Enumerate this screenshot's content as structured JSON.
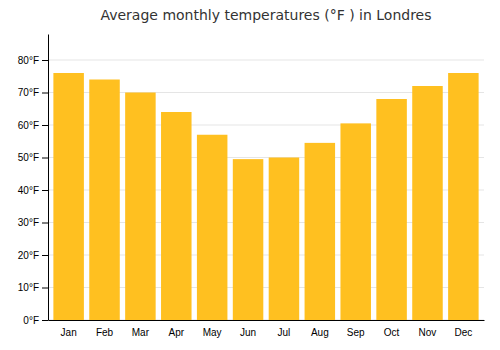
{
  "chart_data": {
    "type": "bar",
    "title": "Average monthly temperatures (°F ) in Londres",
    "categories": [
      "Jan",
      "Feb",
      "Mar",
      "Apr",
      "May",
      "Jun",
      "Jul",
      "Aug",
      "Sep",
      "Oct",
      "Nov",
      "Dec"
    ],
    "values": [
      76,
      74,
      70,
      64,
      57,
      49.5,
      50,
      54.5,
      60.5,
      68,
      72,
      76
    ],
    "color": "#FFC020",
    "ylim": [
      0,
      88
    ],
    "yticks": [
      {
        "value": 0,
        "label": "0°F"
      },
      {
        "value": 10,
        "label": "10°F"
      },
      {
        "value": 20,
        "label": "20°F"
      },
      {
        "value": 30,
        "label": "30°F"
      },
      {
        "value": 40,
        "label": "40°F"
      },
      {
        "value": 50,
        "label": "50°F"
      },
      {
        "value": 60,
        "label": "60°F"
      },
      {
        "value": 70,
        "label": "70°F"
      },
      {
        "value": 80,
        "label": "80°F"
      }
    ],
    "grid": true
  }
}
